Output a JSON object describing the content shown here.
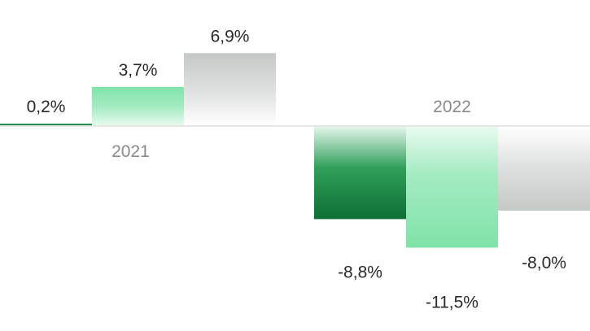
{
  "chart_data": {
    "type": "bar",
    "categories": [
      "2021",
      "2022"
    ],
    "series": [
      {
        "values": [
          0.2,
          -8.8
        ],
        "labels": [
          "0,2%",
          "-8,8%"
        ]
      },
      {
        "values": [
          3.7,
          -11.5
        ],
        "labels": [
          "3,7%",
          "-11,5%"
        ]
      },
      {
        "values": [
          6.9,
          -8.0
        ],
        "labels": [
          "6,9%",
          "-8,0%"
        ]
      }
    ],
    "ylim": [
      -11.5,
      6.9
    ],
    "grid": false,
    "colors": {
      "series_dark_green": [
        "#0e6e34",
        "#2fa05a",
        "#e6f6ec"
      ],
      "series_light_green": [
        "#7fe3a8",
        "#a4ebc2",
        "#e9fbf0"
      ],
      "series_grey": [
        "#c4c9c6",
        "#dde0de",
        "#ffffff"
      ],
      "baseline": "#e6e6e6",
      "category_text": "#8a8a8a",
      "value_text": "#2a2a2a"
    }
  }
}
